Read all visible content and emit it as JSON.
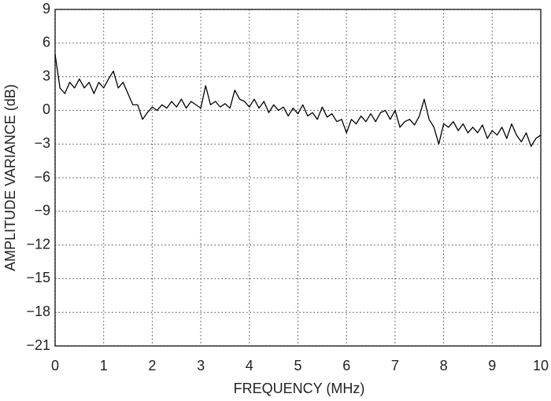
{
  "chart_data": {
    "type": "line",
    "xlabel": "FREQUENCY (MHz)",
    "ylabel": "AMPLITUDE VARIANCE (dB)",
    "x": [
      0,
      0.1,
      0.2,
      0.3,
      0.4,
      0.5,
      0.6,
      0.7,
      0.8,
      0.9,
      1,
      1.1,
      1.2,
      1.3,
      1.4,
      1.5,
      1.6,
      1.7,
      1.8,
      1.9,
      2,
      2.1,
      2.2,
      2.3,
      2.4,
      2.5,
      2.6,
      2.7,
      2.8,
      2.9,
      3,
      3.1,
      3.2,
      3.3,
      3.4,
      3.5,
      3.6,
      3.7,
      3.8,
      3.9,
      4,
      4.1,
      4.2,
      4.3,
      4.4,
      4.5,
      4.6,
      4.7,
      4.8,
      4.9,
      5,
      5.1,
      5.2,
      5.3,
      5.4,
      5.5,
      5.6,
      5.7,
      5.8,
      5.9,
      6,
      6.1,
      6.2,
      6.3,
      6.4,
      6.5,
      6.6,
      6.7,
      6.8,
      6.9,
      7,
      7.1,
      7.2,
      7.3,
      7.4,
      7.5,
      7.6,
      7.7,
      7.8,
      7.9,
      8,
      8.1,
      8.2,
      8.3,
      8.4,
      8.5,
      8.6,
      8.7,
      8.8,
      8.9,
      9,
      9.1,
      9.2,
      9.3,
      9.4,
      9.5,
      9.6,
      9.7,
      9.8,
      9.9,
      10
    ],
    "values": [
      5,
      2,
      1.5,
      2.5,
      2,
      2.8,
      2,
      2.5,
      1.5,
      2.5,
      2,
      2.8,
      3.5,
      2,
      2.5,
      1.5,
      0.5,
      0.5,
      -0.8,
      -0.2,
      0.3,
      0,
      0.5,
      0.2,
      0.8,
      0.3,
      1,
      0.2,
      0.8,
      0.5,
      0.2,
      2.2,
      0.5,
      0.8,
      0.3,
      0.6,
      0.2,
      1.8,
      1,
      0.8,
      0.3,
      1,
      0.2,
      0.8,
      -0.2,
      0.5,
      0,
      0.3,
      -0.5,
      0.2,
      -0.3,
      0.5,
      -0.5,
      -0.2,
      -0.8,
      0.3,
      -0.6,
      -0.3,
      -1,
      -0.8,
      -2,
      -0.8,
      -1.2,
      -0.5,
      -1,
      -0.3,
      -1,
      -0.2,
      0,
      -0.8,
      0,
      -1.5,
      -1,
      -0.8,
      -1.3,
      -0.5,
      1,
      -0.8,
      -1.5,
      -3,
      -1.2,
      -1.5,
      -1,
      -1.8,
      -1.2,
      -2,
      -1.5,
      -2,
      -1.3,
      -2.5,
      -1.8,
      -2.2,
      -1.5,
      -2.5,
      -1.2,
      -2.2,
      -2.8,
      -2,
      -3.2,
      -2.5,
      -2.2
    ],
    "color": "#000000",
    "xlim": [
      0,
      10
    ],
    "xticks": [
      0,
      1,
      2,
      3,
      4,
      5,
      6,
      7,
      8,
      9,
      10
    ],
    "ylim": [
      -21,
      9
    ],
    "yticks": [
      {
        "value": -21,
        "label": "−21"
      },
      {
        "value": -18,
        "label": "−18"
      },
      {
        "value": -15,
        "label": "−15"
      },
      {
        "value": -12,
        "label": "−12"
      },
      {
        "value": -9,
        "label": "−9"
      },
      {
        "value": -6,
        "label": "−6"
      },
      {
        "value": -3,
        "label": "−3"
      },
      0,
      3,
      6,
      9
    ],
    "grid": true
  }
}
